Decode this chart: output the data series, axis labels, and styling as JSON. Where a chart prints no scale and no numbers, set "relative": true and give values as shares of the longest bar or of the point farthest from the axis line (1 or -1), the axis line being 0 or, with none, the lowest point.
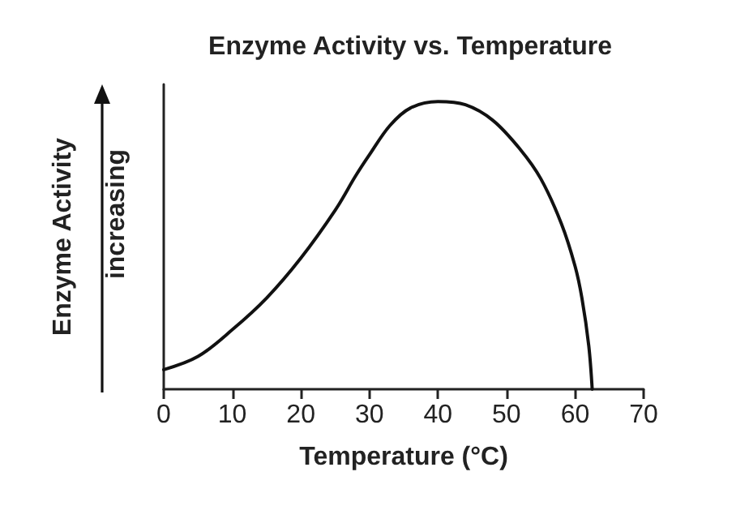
{
  "chart_data": {
    "type": "line",
    "title": "Enzyme Activity vs. Temperature",
    "xlabel": "Temperature (°C)",
    "ylabel": "Enzyme Activity",
    "annotations": [
      "increasing"
    ],
    "relative": true,
    "xlim": [
      0,
      70
    ],
    "xticks": [
      0,
      10,
      20,
      30,
      40,
      50,
      60,
      70
    ],
    "grid": false,
    "marker": "none",
    "line_style": "solid",
    "series": [
      {
        "color": "#111111",
        "x": [
          0,
          5,
          10,
          15,
          20,
          25,
          28,
          30,
          33,
          36,
          40,
          44,
          48,
          52,
          55,
          58,
          60,
          61,
          62,
          62.5
        ],
        "values": [
          0.068,
          0.114,
          0.207,
          0.317,
          0.456,
          0.622,
          0.742,
          0.815,
          0.917,
          0.978,
          1,
          0.989,
          0.935,
          0.834,
          0.732,
          0.576,
          0.428,
          0.317,
          0.151,
          0
        ]
      }
    ]
  }
}
